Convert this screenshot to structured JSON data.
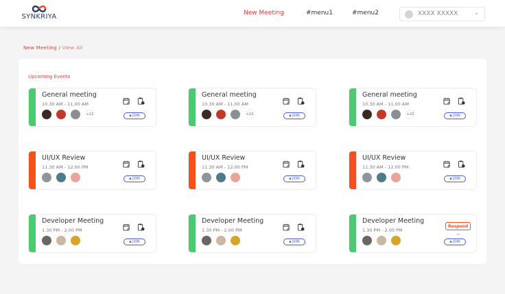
{
  "header": {
    "logo": "SYNKRIYA",
    "nav": [
      "New Meeting",
      "#menu1",
      "#menu2"
    ],
    "user_name": "XXXX XXXXX"
  },
  "breadcrumb": {
    "current": "New Meeting",
    "separator": " / ",
    "sub": "View All"
  },
  "section_title": "Upcoming Events",
  "colors": {
    "green": "#4cca71",
    "orange": "#f4511e",
    "accent": "#e53935",
    "teams": "#4b5bd4"
  },
  "join_label": "JOIN",
  "respond_label": "Respond",
  "events": [
    {
      "title": "General meeting",
      "time": "10.30 AM - 11.00 AM",
      "status": "green",
      "extra": "+22",
      "avatars": [
        "#3a2a25",
        "#c0392b",
        "#8a8f94"
      ]
    },
    {
      "title": "General meeting",
      "time": "10.30 AM - 11.00 AM",
      "status": "green",
      "extra": "+22",
      "avatars": [
        "#3a2a25",
        "#c0392b",
        "#8a8f94"
      ]
    },
    {
      "title": "General meeting",
      "time": "10.30 AM - 11.00 AM",
      "status": "green",
      "extra": "+22",
      "avatars": [
        "#3a2a25",
        "#c0392b",
        "#8a8f94"
      ]
    },
    {
      "title": "UI/UX Review",
      "time": "11.30 AM - 12.00 PM",
      "status": "orange",
      "avatars": [
        "#8f959c",
        "#4f7a8a",
        "#e8a39a"
      ]
    },
    {
      "title": "UI/UX Review",
      "time": "11.30 AM - 12.00 PM",
      "status": "orange",
      "avatars": [
        "#8f959c",
        "#4f7a8a",
        "#e8a39a"
      ]
    },
    {
      "title": "UI/UX Review",
      "time": "11.30 AM - 12.00 PM",
      "status": "orange",
      "avatars": [
        "#8f959c",
        "#4f7a8a",
        "#e8a39a"
      ]
    },
    {
      "title": "Developer Meeting",
      "time": "1.30 PM - 2.00 PM",
      "status": "green",
      "avatars": [
        "#6b6563",
        "#c9b8a4",
        "#d8a52c"
      ]
    },
    {
      "title": "Developer Meeting",
      "time": "1.30 PM - 2.00 PM",
      "status": "green",
      "avatars": [
        "#6b6563",
        "#c9b8a4",
        "#d8a52c"
      ]
    },
    {
      "title": "Developer Meeting",
      "time": "1.30 PM - 2.00 PM",
      "status": "green",
      "respond": true,
      "avatars": [
        "#6b6563",
        "#c9b8a4",
        "#d8a52c"
      ]
    }
  ]
}
